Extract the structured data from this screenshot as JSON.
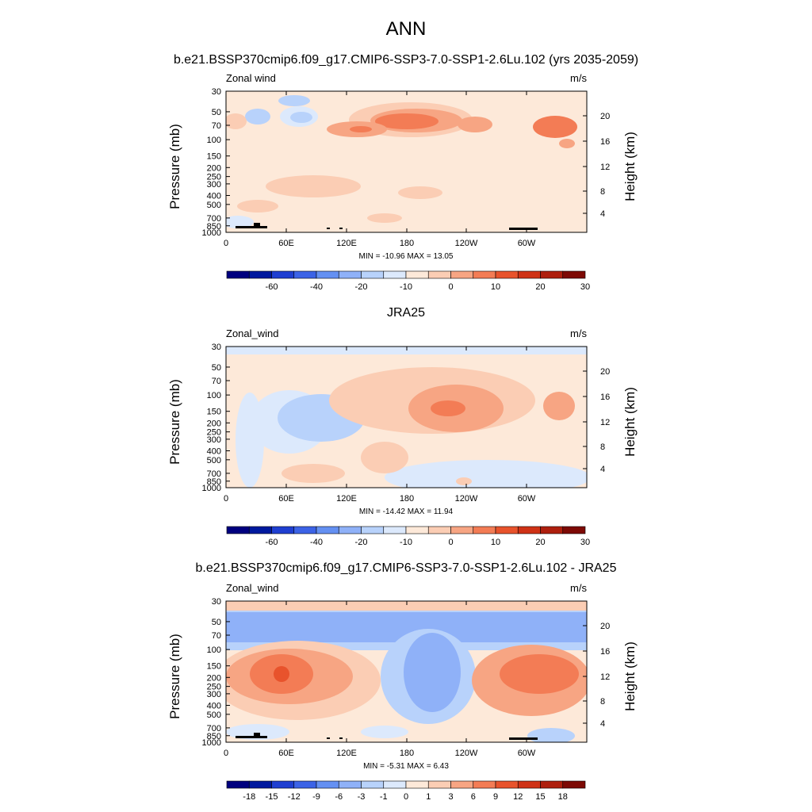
{
  "figure": {
    "title": "ANN",
    "colors": {
      "land": "#000000",
      "frame": "#000000"
    }
  },
  "chart_data": [
    {
      "type": "heatmap",
      "id": "model",
      "title": "b.e21.BSSP370cmip6.f09_g17.CMIP6-SSP3-7.0-SSP1-2.6Lu.102 (yrs 2035-2059)",
      "left_label": "Zonal wind",
      "right_label": "m/s",
      "ylabel": "Pressure (mb)",
      "ylabel_right": "Height (km)",
      "x_ticks": [
        "0",
        "60E",
        "120E",
        "180",
        "120W",
        "60W"
      ],
      "y_ticks": [
        "30",
        "50",
        "70",
        "100",
        "150",
        "200",
        "250",
        "300",
        "400",
        "500",
        "700",
        "850",
        "1000"
      ],
      "y_ticks_right": [
        "20",
        "16",
        "12",
        "8",
        "4"
      ],
      "stats": "MIN = -10.96  MAX =  13.05",
      "colorbar": {
        "levels": [
          "-60",
          "-40",
          "-20",
          "-10",
          "0",
          "10",
          "20",
          "30"
        ],
        "colors": [
          "#00007f",
          "#00199e",
          "#1f3fd1",
          "#3c63e6",
          "#6490f2",
          "#8fb1f8",
          "#b8d2fb",
          "#dce9fc",
          "#fde9d9",
          "#fbcdb4",
          "#f7a583",
          "#f37c55",
          "#e8532c",
          "#cf3216",
          "#ae1f0e",
          "#7d0a05"
        ]
      },
      "background_fill": "#fde9d9",
      "field": [
        {
          "shape": "ellipse",
          "cx": 40,
          "cy": 32,
          "rx": 16,
          "ry": 10,
          "level": 6
        },
        {
          "shape": "ellipse",
          "cx": 86,
          "cy": 12,
          "rx": 20,
          "ry": 7,
          "level": 6
        },
        {
          "shape": "ellipse",
          "cx": 92,
          "cy": 32,
          "rx": 24,
          "ry": 13,
          "level": 7
        },
        {
          "shape": "ellipse",
          "cx": 95,
          "cy": 33,
          "rx": 14,
          "ry": 7,
          "level": 6
        },
        {
          "shape": "ellipse",
          "cx": 233,
          "cy": 36,
          "rx": 78,
          "ry": 22,
          "level": 9
        },
        {
          "shape": "ellipse",
          "cx": 240,
          "cy": 37,
          "rx": 58,
          "ry": 15,
          "level": 10
        },
        {
          "shape": "ellipse",
          "cx": 228,
          "cy": 38,
          "rx": 40,
          "ry": 10,
          "level": 11
        },
        {
          "shape": "ellipse",
          "cx": 314,
          "cy": 42,
          "rx": 22,
          "ry": 10,
          "level": 10
        },
        {
          "shape": "ellipse",
          "cx": 12,
          "cy": 38,
          "rx": 14,
          "ry": 10,
          "level": 9
        },
        {
          "shape": "ellipse",
          "cx": 165,
          "cy": 48,
          "rx": 38,
          "ry": 10,
          "level": 10
        },
        {
          "shape": "ellipse",
          "cx": 170,
          "cy": 48,
          "rx": 14,
          "ry": 4,
          "level": 11
        },
        {
          "shape": "ellipse",
          "cx": 415,
          "cy": 45,
          "rx": 28,
          "ry": 14,
          "level": 11
        },
        {
          "shape": "ellipse",
          "cx": 430,
          "cy": 66,
          "rx": 10,
          "ry": 6,
          "level": 10
        },
        {
          "shape": "ellipse",
          "cx": 110,
          "cy": 120,
          "rx": 60,
          "ry": 14,
          "level": 9
        },
        {
          "shape": "ellipse",
          "cx": 40,
          "cy": 145,
          "rx": 26,
          "ry": 8,
          "level": 9
        },
        {
          "shape": "ellipse",
          "cx": 245,
          "cy": 128,
          "rx": 28,
          "ry": 8,
          "level": 9
        },
        {
          "shape": "ellipse",
          "cx": 15,
          "cy": 165,
          "rx": 20,
          "ry": 8,
          "level": 7
        },
        {
          "shape": "ellipse",
          "cx": 200,
          "cy": 160,
          "rx": 22,
          "ry": 6,
          "level": 9
        }
      ],
      "land": true
    },
    {
      "type": "heatmap",
      "id": "obs",
      "title": "JRA25",
      "left_label": "Zonal_wind",
      "right_label": "m/s",
      "ylabel": "Pressure (mb)",
      "ylabel_right": "Height (km)",
      "x_ticks": [
        "0",
        "60E",
        "120E",
        "180",
        "120W",
        "60W"
      ],
      "y_ticks": [
        "30",
        "50",
        "70",
        "100",
        "150",
        "200",
        "250",
        "300",
        "400",
        "500",
        "700",
        "850",
        "1000"
      ],
      "y_ticks_right": [
        "20",
        "16",
        "12",
        "8",
        "4"
      ],
      "stats": "MIN = -14.42  MAX =  11.94",
      "colorbar": {
        "levels": [
          "-60",
          "-40",
          "-20",
          "-10",
          "0",
          "10",
          "20",
          "30"
        ],
        "colors": [
          "#00007f",
          "#00199e",
          "#1f3fd1",
          "#3c63e6",
          "#6490f2",
          "#8fb1f8",
          "#b8d2fb",
          "#dce9fc",
          "#fde9d9",
          "#fbcdb4",
          "#f7a583",
          "#f37c55",
          "#e8532c",
          "#cf3216",
          "#ae1f0e",
          "#7d0a05"
        ]
      },
      "background_fill": "#fde9d9",
      "field": [
        {
          "shape": "rect",
          "x": 0,
          "y": 0,
          "w": 455,
          "h": 10,
          "level": 7
        },
        {
          "shape": "ellipse",
          "cx": 30,
          "cy": 118,
          "rx": 18,
          "ry": 60,
          "level": 7
        },
        {
          "shape": "ellipse",
          "cx": 80,
          "cy": 95,
          "rx": 50,
          "ry": 40,
          "level": 7
        },
        {
          "shape": "ellipse",
          "cx": 120,
          "cy": 90,
          "rx": 55,
          "ry": 30,
          "level": 6
        },
        {
          "shape": "ellipse",
          "cx": 330,
          "cy": 165,
          "rx": 130,
          "ry": 22,
          "level": 7
        },
        {
          "shape": "ellipse",
          "cx": 260,
          "cy": 68,
          "rx": 130,
          "ry": 42,
          "level": 9
        },
        {
          "shape": "ellipse",
          "cx": 290,
          "cy": 78,
          "rx": 60,
          "ry": 30,
          "level": 10
        },
        {
          "shape": "ellipse",
          "cx": 280,
          "cy": 78,
          "rx": 22,
          "ry": 10,
          "level": 11
        },
        {
          "shape": "ellipse",
          "cx": 420,
          "cy": 75,
          "rx": 20,
          "ry": 18,
          "level": 10
        },
        {
          "shape": "ellipse",
          "cx": 200,
          "cy": 140,
          "rx": 30,
          "ry": 20,
          "level": 9
        },
        {
          "shape": "ellipse",
          "cx": 110,
          "cy": 160,
          "rx": 40,
          "ry": 12,
          "level": 9
        },
        {
          "shape": "ellipse",
          "cx": 300,
          "cy": 170,
          "rx": 10,
          "ry": 5,
          "level": 9
        }
      ],
      "land": false
    },
    {
      "type": "heatmap",
      "id": "diff",
      "title": "b.e21.BSSP370cmip6.f09_g17.CMIP6-SSP3-7.0-SSP1-2.6Lu.102 - JRA25",
      "left_label": "Zonal_wind",
      "right_label": "m/s",
      "ylabel": "Pressure (mb)",
      "ylabel_right": "Height (km)",
      "x_ticks": [
        "0",
        "60E",
        "120E",
        "180",
        "120W",
        "60W"
      ],
      "y_ticks": [
        "30",
        "50",
        "70",
        "100",
        "150",
        "200",
        "250",
        "300",
        "400",
        "500",
        "700",
        "850",
        "1000"
      ],
      "y_ticks_right": [
        "20",
        "16",
        "12",
        "8",
        "4"
      ],
      "stats": "MIN =  -5.31  MAX =   6.43",
      "colorbar": {
        "levels": [
          "-18",
          "-15",
          "-12",
          "-9",
          "-6",
          "-3",
          "-1",
          "0",
          "1",
          "3",
          "6",
          "9",
          "12",
          "15",
          "18"
        ],
        "colors": [
          "#00007f",
          "#00199e",
          "#1f3fd1",
          "#3c63e6",
          "#6490f2",
          "#8fb1f8",
          "#b8d2fb",
          "#dce9fc",
          "#fde9d9",
          "#fbcdb4",
          "#f7a583",
          "#f37c55",
          "#e8532c",
          "#cf3216",
          "#ae1f0e",
          "#7d0a05"
        ]
      },
      "background_fill": "#fde9d9",
      "field": [
        {
          "shape": "rect",
          "x": 0,
          "y": 0,
          "w": 455,
          "h": 12,
          "level": 9
        },
        {
          "shape": "rect",
          "x": 0,
          "y": 12,
          "w": 455,
          "h": 50,
          "level": 6
        },
        {
          "shape": "rect",
          "x": 0,
          "y": 14,
          "w": 455,
          "h": 38,
          "level": 5
        },
        {
          "shape": "ellipse",
          "cx": 255,
          "cy": 95,
          "rx": 60,
          "ry": 60,
          "level": 6
        },
        {
          "shape": "ellipse",
          "cx": 260,
          "cy": 90,
          "rx": 36,
          "ry": 50,
          "level": 5
        },
        {
          "shape": "ellipse",
          "cx": 90,
          "cy": 100,
          "rx": 105,
          "ry": 50,
          "level": 9
        },
        {
          "shape": "ellipse",
          "cx": 80,
          "cy": 95,
          "rx": 80,
          "ry": 35,
          "level": 10
        },
        {
          "shape": "ellipse",
          "cx": 70,
          "cy": 92,
          "rx": 40,
          "ry": 25,
          "level": 11
        },
        {
          "shape": "ellipse",
          "cx": 70,
          "cy": 92,
          "rx": 10,
          "ry": 10,
          "level": 12
        },
        {
          "shape": "ellipse",
          "cx": 385,
          "cy": 100,
          "rx": 75,
          "ry": 45,
          "level": 10
        },
        {
          "shape": "ellipse",
          "cx": 395,
          "cy": 92,
          "rx": 50,
          "ry": 25,
          "level": 11
        },
        {
          "shape": "ellipse",
          "cx": 40,
          "cy": 165,
          "rx": 40,
          "ry": 10,
          "level": 7
        },
        {
          "shape": "ellipse",
          "cx": 200,
          "cy": 165,
          "rx": 30,
          "ry": 8,
          "level": 7
        },
        {
          "shape": "ellipse",
          "cx": 410,
          "cy": 170,
          "rx": 30,
          "ry": 10,
          "level": 6
        }
      ],
      "land": true
    }
  ]
}
